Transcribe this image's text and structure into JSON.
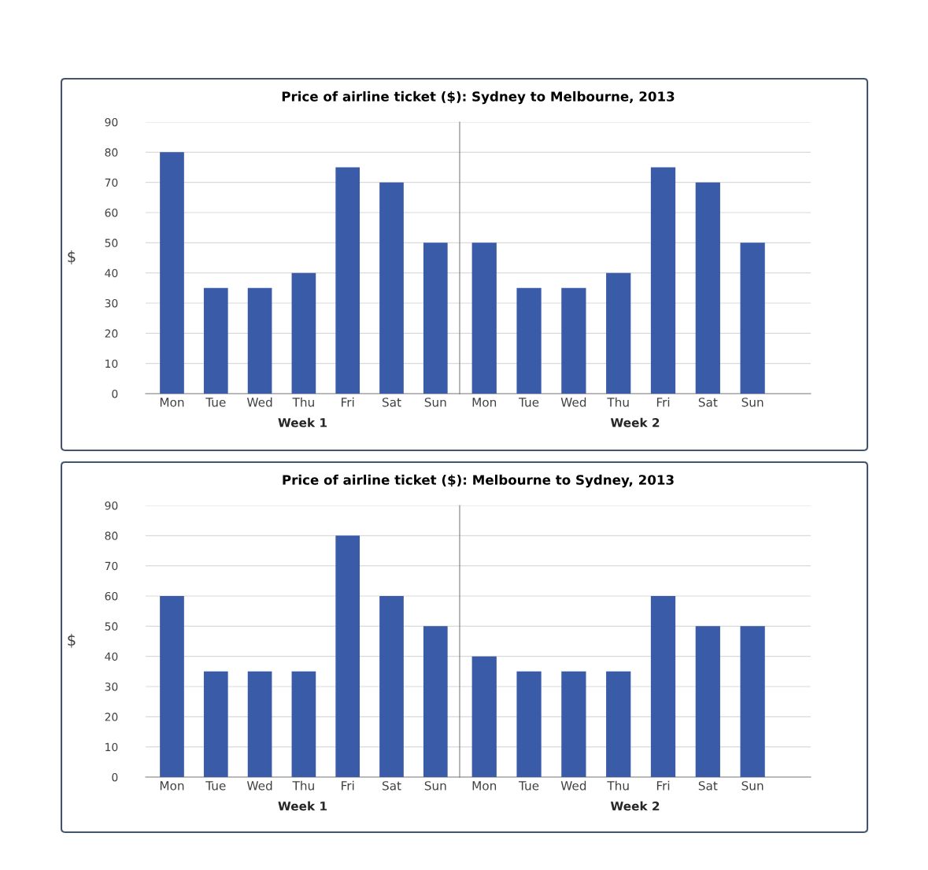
{
  "chart_data": [
    {
      "type": "bar",
      "title": "Price of airline ticket ($): Sydney to Melbourne, 2013",
      "ylabel": "$",
      "xlabel": "Week 1",
      "categories": [
        "Mon",
        "Tue",
        "Wed",
        "Thu",
        "Fri",
        "Sat",
        "Sun"
      ],
      "values": [
        80,
        35,
        35,
        40,
        75,
        70,
        50
      ],
      "color": "#3a5ba8",
      "ylim": [
        0,
        90
      ],
      "yticks": [
        0,
        10,
        20,
        30,
        40,
        50,
        60,
        70,
        80,
        90
      ],
      "grid": "y"
    },
    {
      "type": "bar",
      "xlabel": "Week 2",
      "categories": [
        "Mon",
        "Tue",
        "Wed",
        "Thu",
        "Fri",
        "Sat",
        "Sun"
      ],
      "values": [
        50,
        35,
        35,
        40,
        75,
        70,
        50
      ],
      "color": "#3a5ba8",
      "ylim": [
        0,
        90
      ],
      "yticks": [
        0,
        10,
        20,
        30,
        40,
        50,
        60,
        70,
        80,
        90
      ],
      "grid": "y",
      "tick_labels": "x"
    },
    {
      "type": "bar",
      "title": "Price of airline ticket ($): Melbourne to Sydney, 2013",
      "ylabel": "$",
      "xlabel": "Week 1",
      "categories": [
        "Mon",
        "Tue",
        "Wed",
        "Thu",
        "Fri",
        "Sat",
        "Sun"
      ],
      "values": [
        60,
        35,
        35,
        35,
        80,
        60,
        50
      ],
      "color": "#3a5ba8",
      "ylim": [
        0,
        90
      ],
      "yticks": [
        0,
        10,
        20,
        30,
        40,
        50,
        60,
        70,
        80,
        90
      ],
      "grid": "y"
    },
    {
      "type": "bar",
      "xlabel": "Week 2",
      "categories": [
        "Mon",
        "Tue",
        "Wed",
        "Thu",
        "Fri",
        "Sat",
        "Sun"
      ],
      "values": [
        40,
        35,
        35,
        35,
        60,
        50,
        50
      ],
      "color": "#3a5ba8",
      "ylim": [
        0,
        90
      ],
      "yticks": [
        0,
        10,
        20,
        30,
        40,
        50,
        60,
        70,
        80,
        90
      ],
      "grid": "y",
      "tick_labels": "x"
    }
  ]
}
